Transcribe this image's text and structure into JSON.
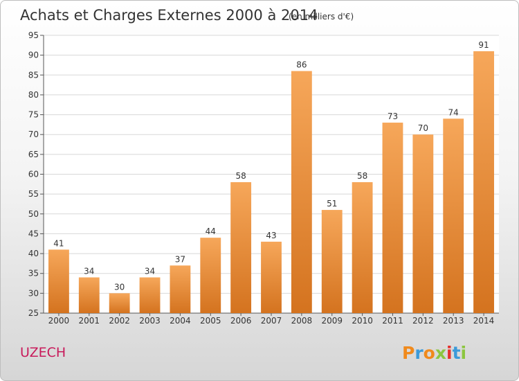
{
  "chart_data": {
    "type": "bar",
    "title": "Achats et Charges Externes 2000 à 2014",
    "subtitle": "(en milliers d'€)",
    "xlabel": "",
    "ylabel": "",
    "categories": [
      "2000",
      "2001",
      "2002",
      "2003",
      "2004",
      "2005",
      "2006",
      "2007",
      "2008",
      "2009",
      "2010",
      "2011",
      "2012",
      "2013",
      "2014"
    ],
    "values": [
      41,
      34,
      30,
      34,
      37,
      44,
      58,
      43,
      86,
      51,
      58,
      73,
      70,
      74,
      91
    ],
    "ylim": [
      25,
      95
    ],
    "yticks": [
      25,
      30,
      35,
      40,
      45,
      50,
      55,
      60,
      65,
      70,
      75,
      80,
      85,
      90,
      95
    ],
    "grid": true,
    "legend": "none",
    "bar_color_top": "#f6a75a",
    "bar_color_bottom": "#d4731f"
  },
  "commune": {
    "name": "UZECH",
    "color": "#c8195a"
  },
  "logo": {
    "letters": [
      "P",
      "r",
      "o",
      "x",
      "i",
      "t",
      "i"
    ],
    "colors": [
      "#f08a1c",
      "#3b9ad9",
      "#f08a1c",
      "#8cc63f",
      "#e5322d",
      "#3b9ad9",
      "#8cc63f"
    ]
  }
}
